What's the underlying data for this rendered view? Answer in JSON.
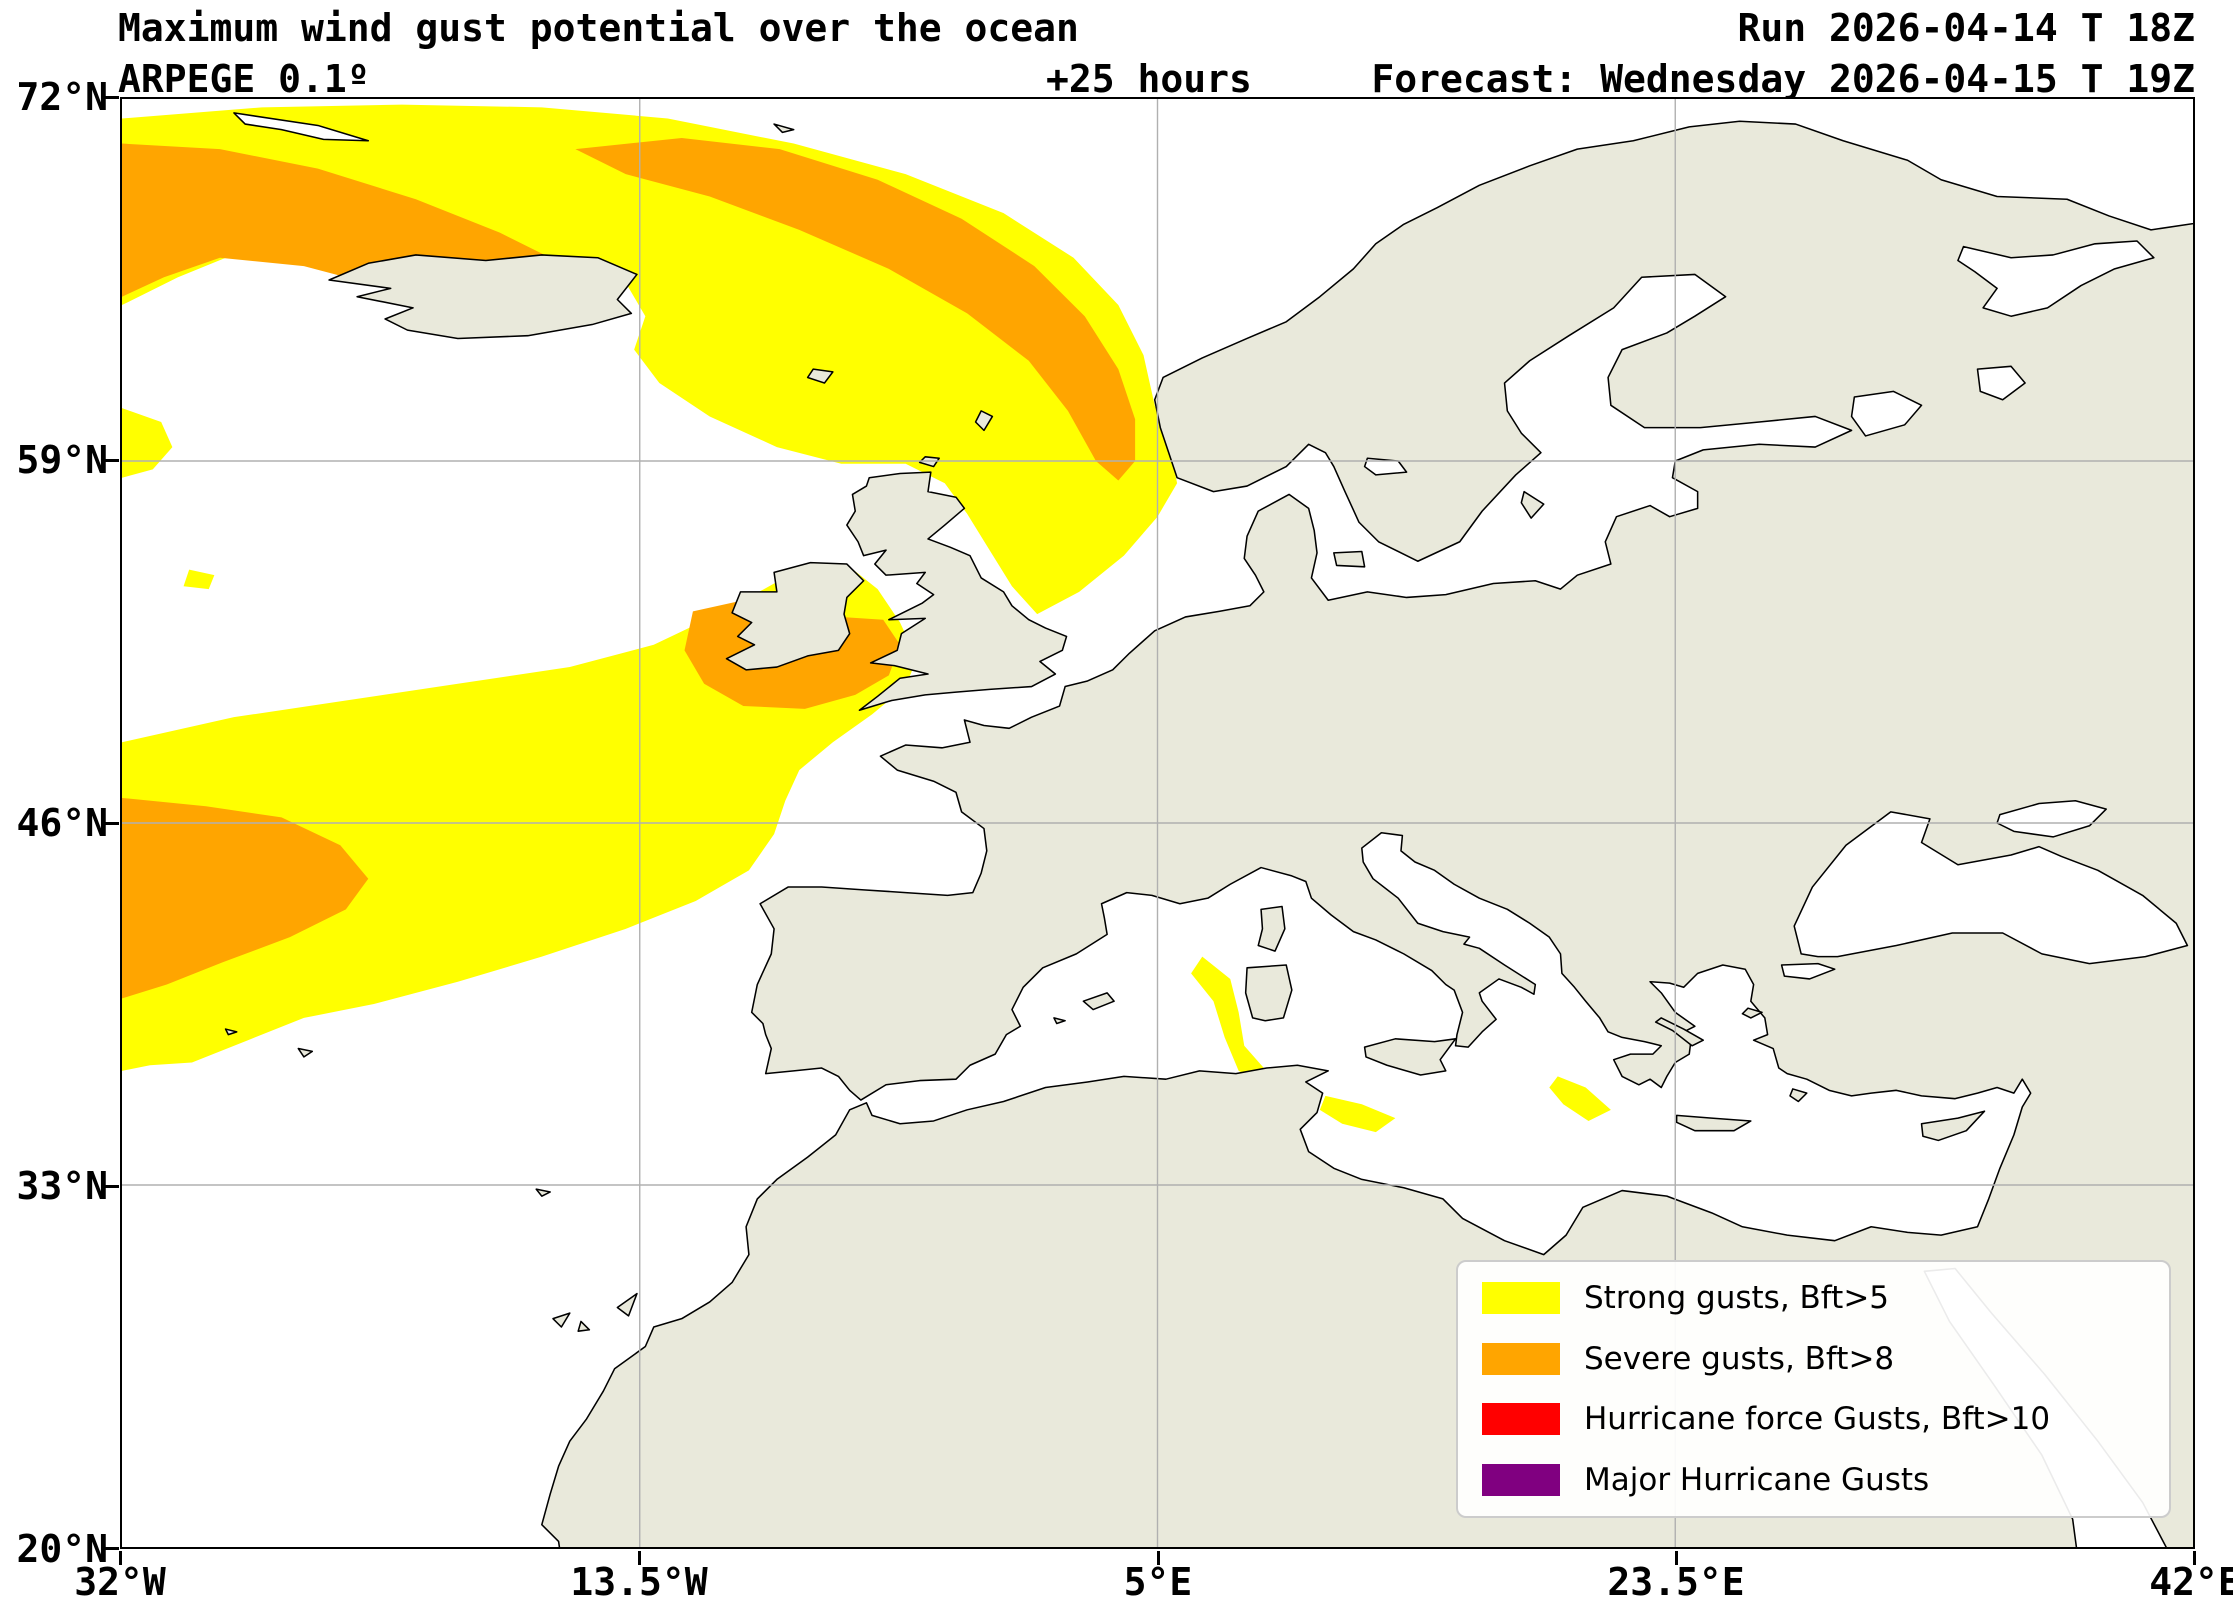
{
  "header": {
    "title": "Maximum wind gust potential over the ocean",
    "model": "ARPEGE 0.1º",
    "lead": "+25 hours",
    "run": "Run 2026-04-14 T 18Z",
    "forecast": "Forecast: Wednesday 2026-04-15 T 19Z"
  },
  "axes": {
    "lat_labels": [
      "72°N",
      "59°N",
      "46°N",
      "33°N",
      "20°N"
    ],
    "lon_labels": [
      "32°W",
      "13.5°W",
      "5°E",
      "23.5°E",
      "42°E"
    ]
  },
  "legend": [
    {
      "label": "Strong gusts, Bft>5",
      "color": "#ffff00"
    },
    {
      "label": "Severe gusts, Bft>8",
      "color": "#ffa500"
    },
    {
      "label": "Hurricane force Gusts, Bft>10",
      "color": "#ff0000"
    },
    {
      "label": "Major Hurricane Gusts",
      "color": "#800080"
    }
  ],
  "map": {
    "land_color": "#e9e9db",
    "ocean_color": "#ffffff",
    "coast_color": "#000000",
    "grid_color": "#b0b0b0"
  }
}
